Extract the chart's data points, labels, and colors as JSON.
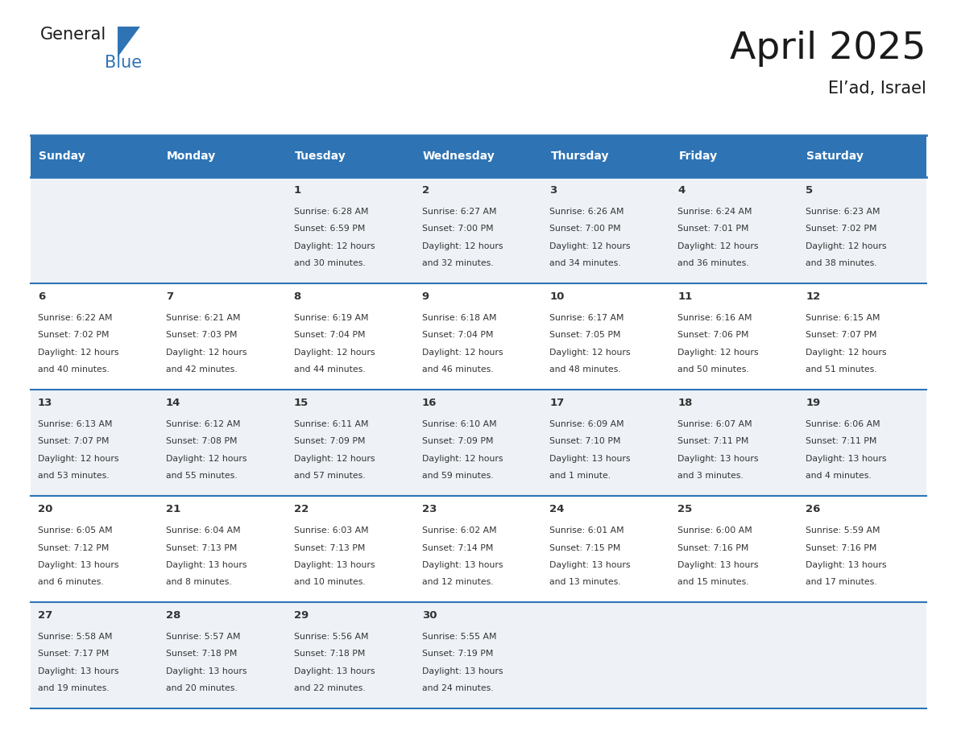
{
  "title": "April 2025",
  "subtitle": "El’ad, Israel",
  "header_bg": "#2e74b5",
  "header_text_color": "#ffffff",
  "cell_bg_odd_row": "#eef2f7",
  "cell_bg_even_row": "#ffffff",
  "border_color": "#2e74b5",
  "text_color": "#333333",
  "days_of_week": [
    "Sunday",
    "Monday",
    "Tuesday",
    "Wednesday",
    "Thursday",
    "Friday",
    "Saturday"
  ],
  "weeks": [
    [
      {
        "day": "",
        "sunrise": "",
        "sunset": "",
        "daylight": ""
      },
      {
        "day": "",
        "sunrise": "",
        "sunset": "",
        "daylight": ""
      },
      {
        "day": "1",
        "sunrise": "Sunrise: 6:28 AM",
        "sunset": "Sunset: 6:59 PM",
        "daylight": "Daylight: 12 hours\nand 30 minutes."
      },
      {
        "day": "2",
        "sunrise": "Sunrise: 6:27 AM",
        "sunset": "Sunset: 7:00 PM",
        "daylight": "Daylight: 12 hours\nand 32 minutes."
      },
      {
        "day": "3",
        "sunrise": "Sunrise: 6:26 AM",
        "sunset": "Sunset: 7:00 PM",
        "daylight": "Daylight: 12 hours\nand 34 minutes."
      },
      {
        "day": "4",
        "sunrise": "Sunrise: 6:24 AM",
        "sunset": "Sunset: 7:01 PM",
        "daylight": "Daylight: 12 hours\nand 36 minutes."
      },
      {
        "day": "5",
        "sunrise": "Sunrise: 6:23 AM",
        "sunset": "Sunset: 7:02 PM",
        "daylight": "Daylight: 12 hours\nand 38 minutes."
      }
    ],
    [
      {
        "day": "6",
        "sunrise": "Sunrise: 6:22 AM",
        "sunset": "Sunset: 7:02 PM",
        "daylight": "Daylight: 12 hours\nand 40 minutes."
      },
      {
        "day": "7",
        "sunrise": "Sunrise: 6:21 AM",
        "sunset": "Sunset: 7:03 PM",
        "daylight": "Daylight: 12 hours\nand 42 minutes."
      },
      {
        "day": "8",
        "sunrise": "Sunrise: 6:19 AM",
        "sunset": "Sunset: 7:04 PM",
        "daylight": "Daylight: 12 hours\nand 44 minutes."
      },
      {
        "day": "9",
        "sunrise": "Sunrise: 6:18 AM",
        "sunset": "Sunset: 7:04 PM",
        "daylight": "Daylight: 12 hours\nand 46 minutes."
      },
      {
        "day": "10",
        "sunrise": "Sunrise: 6:17 AM",
        "sunset": "Sunset: 7:05 PM",
        "daylight": "Daylight: 12 hours\nand 48 minutes."
      },
      {
        "day": "11",
        "sunrise": "Sunrise: 6:16 AM",
        "sunset": "Sunset: 7:06 PM",
        "daylight": "Daylight: 12 hours\nand 50 minutes."
      },
      {
        "day": "12",
        "sunrise": "Sunrise: 6:15 AM",
        "sunset": "Sunset: 7:07 PM",
        "daylight": "Daylight: 12 hours\nand 51 minutes."
      }
    ],
    [
      {
        "day": "13",
        "sunrise": "Sunrise: 6:13 AM",
        "sunset": "Sunset: 7:07 PM",
        "daylight": "Daylight: 12 hours\nand 53 minutes."
      },
      {
        "day": "14",
        "sunrise": "Sunrise: 6:12 AM",
        "sunset": "Sunset: 7:08 PM",
        "daylight": "Daylight: 12 hours\nand 55 minutes."
      },
      {
        "day": "15",
        "sunrise": "Sunrise: 6:11 AM",
        "sunset": "Sunset: 7:09 PM",
        "daylight": "Daylight: 12 hours\nand 57 minutes."
      },
      {
        "day": "16",
        "sunrise": "Sunrise: 6:10 AM",
        "sunset": "Sunset: 7:09 PM",
        "daylight": "Daylight: 12 hours\nand 59 minutes."
      },
      {
        "day": "17",
        "sunrise": "Sunrise: 6:09 AM",
        "sunset": "Sunset: 7:10 PM",
        "daylight": "Daylight: 13 hours\nand 1 minute."
      },
      {
        "day": "18",
        "sunrise": "Sunrise: 6:07 AM",
        "sunset": "Sunset: 7:11 PM",
        "daylight": "Daylight: 13 hours\nand 3 minutes."
      },
      {
        "day": "19",
        "sunrise": "Sunrise: 6:06 AM",
        "sunset": "Sunset: 7:11 PM",
        "daylight": "Daylight: 13 hours\nand 4 minutes."
      }
    ],
    [
      {
        "day": "20",
        "sunrise": "Sunrise: 6:05 AM",
        "sunset": "Sunset: 7:12 PM",
        "daylight": "Daylight: 13 hours\nand 6 minutes."
      },
      {
        "day": "21",
        "sunrise": "Sunrise: 6:04 AM",
        "sunset": "Sunset: 7:13 PM",
        "daylight": "Daylight: 13 hours\nand 8 minutes."
      },
      {
        "day": "22",
        "sunrise": "Sunrise: 6:03 AM",
        "sunset": "Sunset: 7:13 PM",
        "daylight": "Daylight: 13 hours\nand 10 minutes."
      },
      {
        "day": "23",
        "sunrise": "Sunrise: 6:02 AM",
        "sunset": "Sunset: 7:14 PM",
        "daylight": "Daylight: 13 hours\nand 12 minutes."
      },
      {
        "day": "24",
        "sunrise": "Sunrise: 6:01 AM",
        "sunset": "Sunset: 7:15 PM",
        "daylight": "Daylight: 13 hours\nand 13 minutes."
      },
      {
        "day": "25",
        "sunrise": "Sunrise: 6:00 AM",
        "sunset": "Sunset: 7:16 PM",
        "daylight": "Daylight: 13 hours\nand 15 minutes."
      },
      {
        "day": "26",
        "sunrise": "Sunrise: 5:59 AM",
        "sunset": "Sunset: 7:16 PM",
        "daylight": "Daylight: 13 hours\nand 17 minutes."
      }
    ],
    [
      {
        "day": "27",
        "sunrise": "Sunrise: 5:58 AM",
        "sunset": "Sunset: 7:17 PM",
        "daylight": "Daylight: 13 hours\nand 19 minutes."
      },
      {
        "day": "28",
        "sunrise": "Sunrise: 5:57 AM",
        "sunset": "Sunset: 7:18 PM",
        "daylight": "Daylight: 13 hours\nand 20 minutes."
      },
      {
        "day": "29",
        "sunrise": "Sunrise: 5:56 AM",
        "sunset": "Sunset: 7:18 PM",
        "daylight": "Daylight: 13 hours\nand 22 minutes."
      },
      {
        "day": "30",
        "sunrise": "Sunrise: 5:55 AM",
        "sunset": "Sunset: 7:19 PM",
        "daylight": "Daylight: 13 hours\nand 24 minutes."
      },
      {
        "day": "",
        "sunrise": "",
        "sunset": "",
        "daylight": ""
      },
      {
        "day": "",
        "sunrise": "",
        "sunset": "",
        "daylight": ""
      },
      {
        "day": "",
        "sunrise": "",
        "sunset": "",
        "daylight": ""
      }
    ]
  ]
}
